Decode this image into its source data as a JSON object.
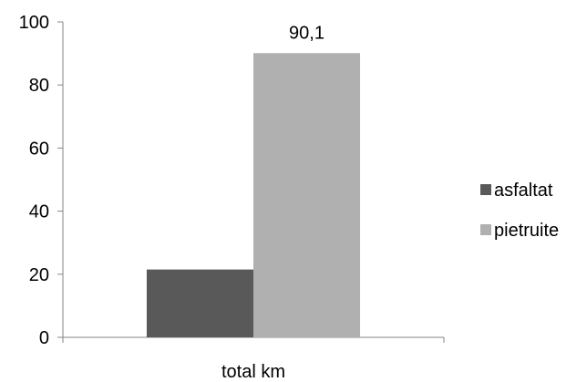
{
  "chart_data": {
    "type": "bar",
    "categories": [
      "total km"
    ],
    "series": [
      {
        "name": "asfaltat",
        "values": [
          21.5
        ],
        "color": "#595959"
      },
      {
        "name": "pietruite",
        "values": [
          90.1
        ],
        "color": "#b0b0b0"
      }
    ],
    "data_labels": [
      {
        "series": "pietruite",
        "category": "total km",
        "text": "90,1"
      }
    ],
    "ylim": [
      0,
      100
    ],
    "yticks": [
      0,
      20,
      40,
      60,
      80,
      100
    ],
    "legend_position": "right",
    "grid": false,
    "title": "",
    "xlabel": "",
    "ylabel": ""
  }
}
